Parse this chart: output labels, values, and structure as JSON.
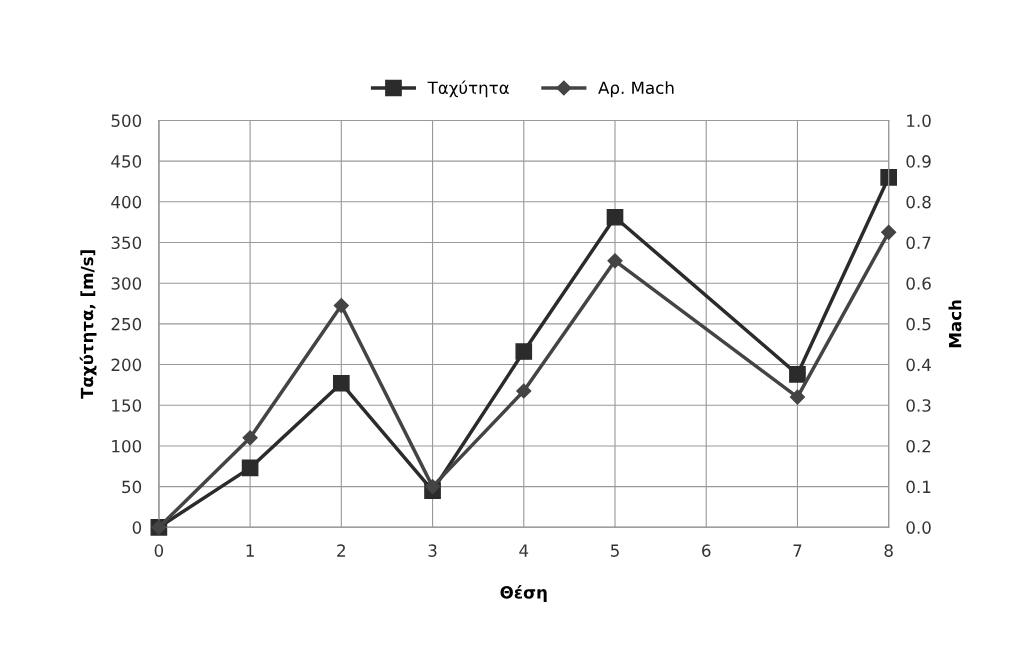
{
  "chart_data": {
    "type": "line",
    "xlabel": "Θέση",
    "ylabel": "Ταχύτητα, [m/s]",
    "y2label": "Mach",
    "x": [
      0,
      1,
      2,
      3,
      4,
      5,
      7,
      8
    ],
    "series": [
      {
        "name": "Ταχύτητα",
        "color": "#2b2b2b",
        "marker": "square",
        "values": [
          0,
          73,
          177,
          45,
          216,
          381,
          188,
          430
        ]
      },
      {
        "name": "Αρ. Mach",
        "color": "#444444",
        "marker": "diamond",
        "axis": "y2",
        "values": [
          0,
          0.22,
          0.545,
          0.1,
          0.335,
          0.655,
          0.32,
          0.725
        ]
      }
    ],
    "xlim": [
      0,
      8
    ],
    "xticks": [
      0,
      1,
      2,
      3,
      4,
      5,
      6,
      7,
      8
    ],
    "ylim": [
      0,
      500
    ],
    "yticks": [
      0,
      50,
      100,
      150,
      200,
      250,
      300,
      350,
      400,
      450,
      500
    ],
    "y2lim": [
      0,
      1.0
    ],
    "y2ticks": [
      {
        "value": 0,
        "label": "0.0"
      },
      {
        "value": 0.1,
        "label": "0.1"
      },
      {
        "value": 0.2,
        "label": "0.2"
      },
      {
        "value": 0.3,
        "label": "0.3"
      },
      {
        "value": 0.4,
        "label": "0.4"
      },
      {
        "value": 0.5,
        "label": "0.5"
      },
      {
        "value": 0.6,
        "label": "0.6"
      },
      {
        "value": 0.7,
        "label": "0.7"
      },
      {
        "value": 0.8,
        "label": "0.8"
      },
      {
        "value": 0.9,
        "label": "0.9"
      },
      {
        "value": 1.0,
        "label": "1.0"
      }
    ],
    "grid": true,
    "legend": "top",
    "line_style": "solid"
  }
}
